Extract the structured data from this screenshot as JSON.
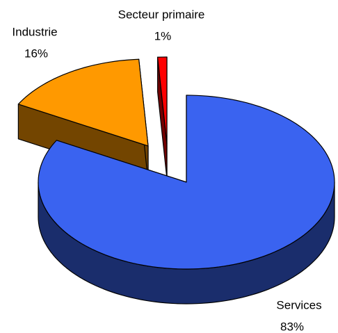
{
  "chart_data": {
    "type": "pie3d",
    "categories": [
      "Services",
      "Industrie",
      "Secteur primaire"
    ],
    "values": [
      83,
      16,
      1
    ],
    "value_labels": [
      "83%",
      "16%",
      "1%"
    ],
    "colors": [
      "#3a63f0",
      "#ff9900",
      "#ff0000"
    ]
  }
}
